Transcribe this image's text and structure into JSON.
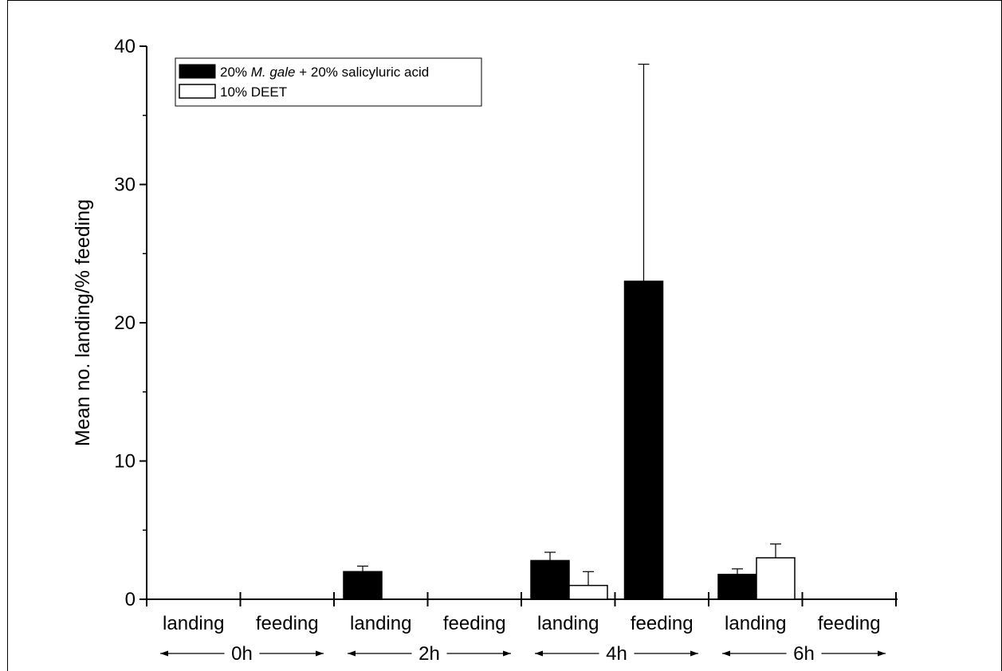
{
  "chart_data": {
    "type": "bar",
    "ylabel": "Mean no. landing/% feeding",
    "xlabel": "",
    "ylim": [
      0,
      40
    ],
    "yticks": [
      0,
      10,
      20,
      30,
      40
    ],
    "categories": [
      "landing",
      "feeding",
      "landing",
      "feeding",
      "landing",
      "feeding",
      "landing",
      "feeding"
    ],
    "groups": [
      {
        "label": "0h",
        "categories": [
          0,
          1
        ]
      },
      {
        "label": "2h",
        "categories": [
          2,
          3
        ]
      },
      {
        "label": "4h",
        "categories": [
          4,
          5
        ]
      },
      {
        "label": "6h",
        "categories": [
          6,
          7
        ]
      }
    ],
    "series": [
      {
        "name_prefix": "20% ",
        "name_italic": "M. gale",
        "name_suffix": " + 20% salicyluric acid",
        "fill": "#000000",
        "values": [
          0,
          0,
          2.0,
          0,
          2.8,
          23.0,
          1.8,
          0
        ],
        "errors": [
          0,
          0,
          0.4,
          0,
          0.6,
          15.7,
          0.4,
          0
        ]
      },
      {
        "name": "10% DEET",
        "fill": "#ffffff",
        "values": [
          0,
          0,
          0,
          0,
          1.0,
          0,
          3.0,
          0
        ],
        "errors": [
          0,
          0,
          0,
          0,
          1.0,
          0,
          1.0,
          0
        ]
      }
    ],
    "grid": false,
    "legend_position": "top-left"
  }
}
